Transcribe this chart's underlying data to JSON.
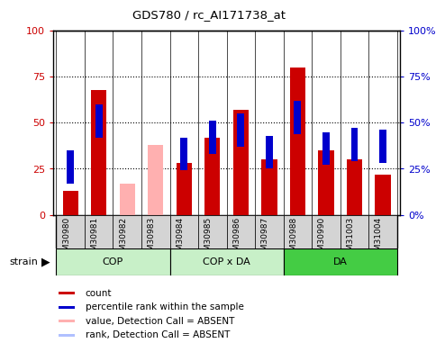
{
  "title": "GDS780 / rc_AI171738_at",
  "samples": [
    "GSM30980",
    "GSM30981",
    "GSM30982",
    "GSM30983",
    "GSM30984",
    "GSM30985",
    "GSM30986",
    "GSM30987",
    "GSM30988",
    "GSM30990",
    "GSM31003",
    "GSM31004"
  ],
  "count_values": [
    13,
    68,
    17,
    38,
    28,
    42,
    57,
    30,
    80,
    35,
    30,
    22
  ],
  "rank_values": [
    26,
    51,
    0,
    0,
    33,
    42,
    46,
    34,
    53,
    36,
    38,
    37
  ],
  "absent_samples": [
    2,
    3
  ],
  "count_color": "#cc0000",
  "rank_color": "#0000cc",
  "absent_count_color": "#ffb0b0",
  "absent_rank_color": "#b0c0ff",
  "group_ranges": [
    [
      0,
      4,
      "COP",
      "#c8f0c8"
    ],
    [
      4,
      8,
      "COP x DA",
      "#c8f0c8"
    ],
    [
      8,
      12,
      "DA",
      "#44cc44"
    ]
  ],
  "strain_label": "strain",
  "yticks": [
    0,
    25,
    50,
    75,
    100
  ],
  "bar_width": 0.55,
  "rank_sq_size": 0.18,
  "plot_bg": "#ffffff",
  "sample_bg": "#d4d4d4",
  "fig_width": 4.93,
  "fig_height": 3.75
}
